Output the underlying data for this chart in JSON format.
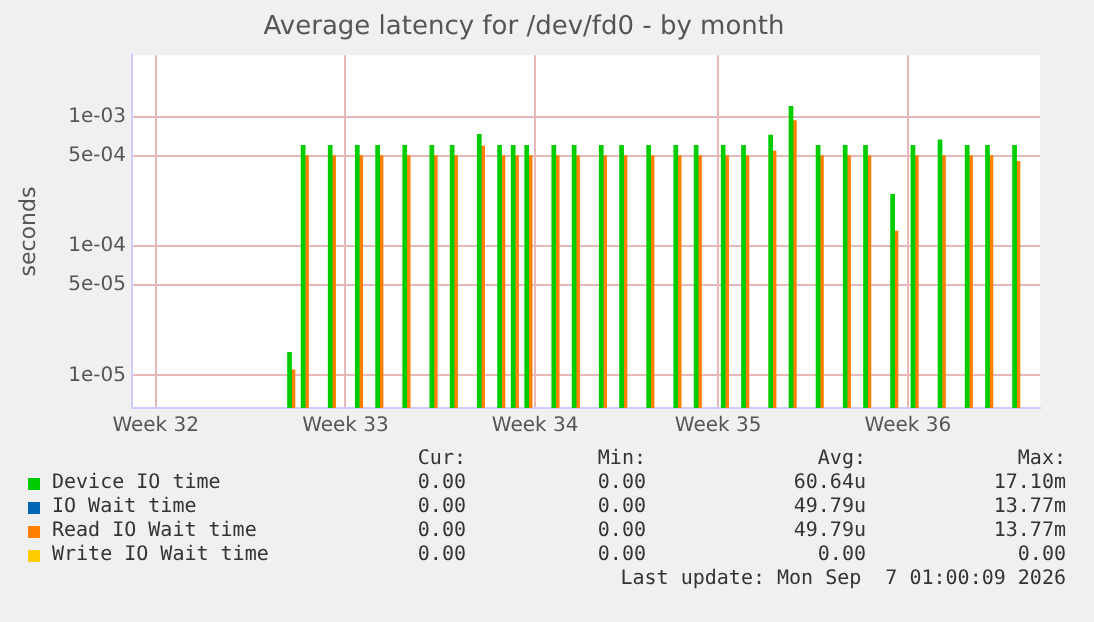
{
  "chart_data": {
    "type": "bar",
    "title": "Average latency for /dev/fd0 - by month",
    "ylabel": "seconds",
    "log": "y",
    "grid": true,
    "legend": "bottom",
    "categories": [
      null,
      null,
      null,
      "Week 32",
      null,
      null,
      null,
      null,
      null,
      null,
      null,
      null,
      null,
      null,
      null,
      null,
      null,
      null,
      null,
      null,
      null,
      null,
      null,
      null,
      null,
      null,
      null,
      null,
      null,
      null,
      null,
      "Week 33",
      null,
      null,
      null,
      null,
      null,
      null,
      null,
      null,
      null,
      null,
      null,
      null,
      null,
      null,
      null,
      null,
      null,
      null,
      null,
      null,
      null,
      null,
      null,
      null,
      null,
      null,
      null,
      "Week 34",
      null,
      null,
      null,
      null,
      null,
      null,
      null,
      null,
      null,
      null,
      null,
      null,
      null,
      null,
      null,
      null,
      null,
      null,
      null,
      null,
      null,
      null,
      null,
      null,
      null,
      null,
      "Week 35",
      null,
      null,
      null,
      null,
      null,
      null,
      null,
      null,
      null,
      null,
      null,
      null,
      null,
      null,
      null,
      null,
      null,
      null,
      null,
      null,
      null,
      null,
      null,
      null,
      null,
      null,
      null,
      "Week 36",
      null,
      null,
      null,
      null,
      null,
      null,
      null,
      null,
      null,
      null,
      null,
      null,
      null,
      null,
      null,
      null,
      null,
      null,
      null
    ],
    "ylim": [
      5.6e-06,
      0.003
    ],
    "yticks": [
      {
        "value": 1e-05,
        "label": "1e-05"
      },
      {
        "value": 5e-05,
        "label": "5e-05"
      },
      {
        "value": 0.0001,
        "label": "1e-04"
      },
      {
        "value": 0.0005,
        "label": "5e-04"
      },
      {
        "value": 0.001,
        "label": "1e-03"
      }
    ],
    "series": [
      {
        "name": "Device IO time",
        "color": "#00cc00",
        "values": [
          null,
          null,
          null,
          null,
          null,
          null,
          null,
          null,
          null,
          null,
          null,
          null,
          null,
          null,
          null,
          null,
          null,
          null,
          null,
          null,
          null,
          null,
          null,
          1.5e-05,
          null,
          0.0006,
          null,
          null,
          null,
          0.0006,
          null,
          null,
          null,
          0.0006,
          null,
          null,
          0.0006,
          null,
          null,
          null,
          0.0006,
          null,
          null,
          null,
          0.0006,
          null,
          null,
          0.0006,
          null,
          null,
          null,
          0.00073,
          null,
          null,
          0.0006,
          null,
          0.0006,
          null,
          0.0006,
          null,
          null,
          null,
          0.0006,
          null,
          null,
          0.0006,
          null,
          null,
          null,
          0.0006,
          null,
          null,
          0.0006,
          null,
          null,
          null,
          0.0006,
          null,
          null,
          null,
          0.0006,
          null,
          null,
          0.0006,
          null,
          null,
          null,
          0.0006,
          null,
          null,
          0.0006,
          null,
          null,
          null,
          0.00072,
          null,
          null,
          0.0012,
          null,
          null,
          null,
          0.0006,
          null,
          null,
          null,
          0.0006,
          null,
          null,
          0.0006,
          null,
          null,
          null,
          0.00025,
          null,
          null,
          0.0006,
          null,
          null,
          null,
          0.00066,
          null,
          null,
          null,
          0.0006,
          null,
          null,
          0.0006,
          null,
          null,
          null,
          0.0006,
          null,
          null,
          null
        ]
      },
      {
        "name": "IO Wait time",
        "color": "#0066b3",
        "values": [
          null,
          null,
          null,
          null,
          null,
          null,
          null,
          null,
          null,
          null,
          null,
          null,
          null,
          null,
          null,
          null,
          null,
          null,
          null,
          null,
          null,
          null,
          null,
          null,
          null,
          null,
          null,
          null,
          null,
          null,
          null,
          null,
          null,
          null,
          null,
          null,
          null,
          null,
          null,
          null,
          null,
          null,
          null,
          null,
          null,
          null,
          null,
          null,
          null,
          null,
          null,
          null,
          null,
          null,
          null,
          null,
          null,
          null,
          null,
          null,
          null,
          null,
          null,
          null,
          null,
          null,
          null,
          null,
          null,
          null,
          null,
          null,
          null,
          null,
          null,
          null,
          null,
          null,
          null,
          null,
          null,
          null,
          null,
          null,
          null,
          null,
          null,
          null,
          null,
          null,
          null,
          null,
          null,
          null,
          null,
          null,
          null,
          null,
          null,
          null,
          null,
          null,
          null,
          null,
          null,
          null,
          null,
          null,
          null,
          null,
          null,
          null,
          null,
          null,
          null,
          null,
          null,
          null,
          null,
          null,
          null,
          null,
          null,
          null,
          null,
          null,
          null,
          null,
          null,
          null,
          null,
          null,
          null,
          null
        ]
      },
      {
        "name": "Read IO Wait time",
        "color": "#ff8000",
        "values": [
          null,
          null,
          null,
          null,
          null,
          null,
          null,
          null,
          null,
          null,
          null,
          null,
          null,
          null,
          null,
          null,
          null,
          null,
          null,
          null,
          null,
          null,
          null,
          1.1e-05,
          null,
          0.0005,
          null,
          null,
          null,
          0.0005,
          null,
          null,
          null,
          0.0005,
          null,
          null,
          0.0005,
          null,
          null,
          null,
          0.0005,
          null,
          null,
          null,
          0.0005,
          null,
          null,
          0.0005,
          null,
          null,
          null,
          0.00059,
          null,
          null,
          0.0005,
          null,
          0.0005,
          null,
          0.0005,
          null,
          null,
          null,
          0.0005,
          null,
          null,
          0.0005,
          null,
          null,
          null,
          0.0005,
          null,
          null,
          0.0005,
          null,
          null,
          null,
          0.0005,
          null,
          null,
          null,
          0.0005,
          null,
          null,
          0.0005,
          null,
          null,
          null,
          0.0005,
          null,
          null,
          0.0005,
          null,
          null,
          null,
          0.00054,
          null,
          null,
          0.00093,
          null,
          null,
          null,
          0.0005,
          null,
          null,
          null,
          0.0005,
          null,
          null,
          0.0005,
          null,
          null,
          null,
          0.00013,
          null,
          null,
          0.0005,
          null,
          null,
          null,
          0.0005,
          null,
          null,
          null,
          0.0005,
          null,
          null,
          0.0005,
          null,
          null,
          null,
          0.00045,
          null,
          null,
          null
        ]
      },
      {
        "name": "Write IO Wait time",
        "color": "#ffcc00",
        "values": [
          null,
          null,
          null,
          null,
          null,
          null,
          null,
          null,
          null,
          null,
          null,
          null,
          null,
          null,
          null,
          null,
          null,
          null,
          null,
          null,
          null,
          null,
          null,
          null,
          null,
          null,
          null,
          null,
          null,
          null,
          null,
          null,
          null,
          null,
          null,
          null,
          null,
          null,
          null,
          null,
          null,
          null,
          null,
          null,
          null,
          null,
          null,
          null,
          null,
          null,
          null,
          null,
          null,
          null,
          null,
          null,
          null,
          null,
          null,
          null,
          null,
          null,
          null,
          null,
          null,
          null,
          null,
          null,
          null,
          null,
          null,
          null,
          null,
          null,
          null,
          null,
          null,
          null,
          null,
          null,
          null,
          null,
          null,
          null,
          null,
          null,
          null,
          null,
          null,
          null,
          null,
          null,
          null,
          null,
          null,
          null,
          null,
          null,
          null,
          null,
          null,
          null,
          null,
          null,
          null,
          null,
          null,
          null,
          null,
          null,
          null,
          null,
          null,
          null,
          null,
          null,
          null,
          null,
          null,
          null,
          null,
          null,
          null,
          null,
          null,
          null,
          null,
          null,
          null,
          null,
          null,
          null,
          null,
          null
        ]
      }
    ],
    "annotations": [
      "Cur:",
      "Min:",
      "Avg:",
      "Max:",
      "0.00",
      "0.00",
      "60.64u",
      "17.10m",
      "0.00",
      "0.00",
      "49.79u",
      "13.77m",
      "0.00",
      "0.00",
      "49.79u",
      "13.77m",
      "0.00",
      "0.00",
      "0.00",
      "0.00",
      "Last update: Mon Sep  7 01:00:09 2026"
    ]
  }
}
